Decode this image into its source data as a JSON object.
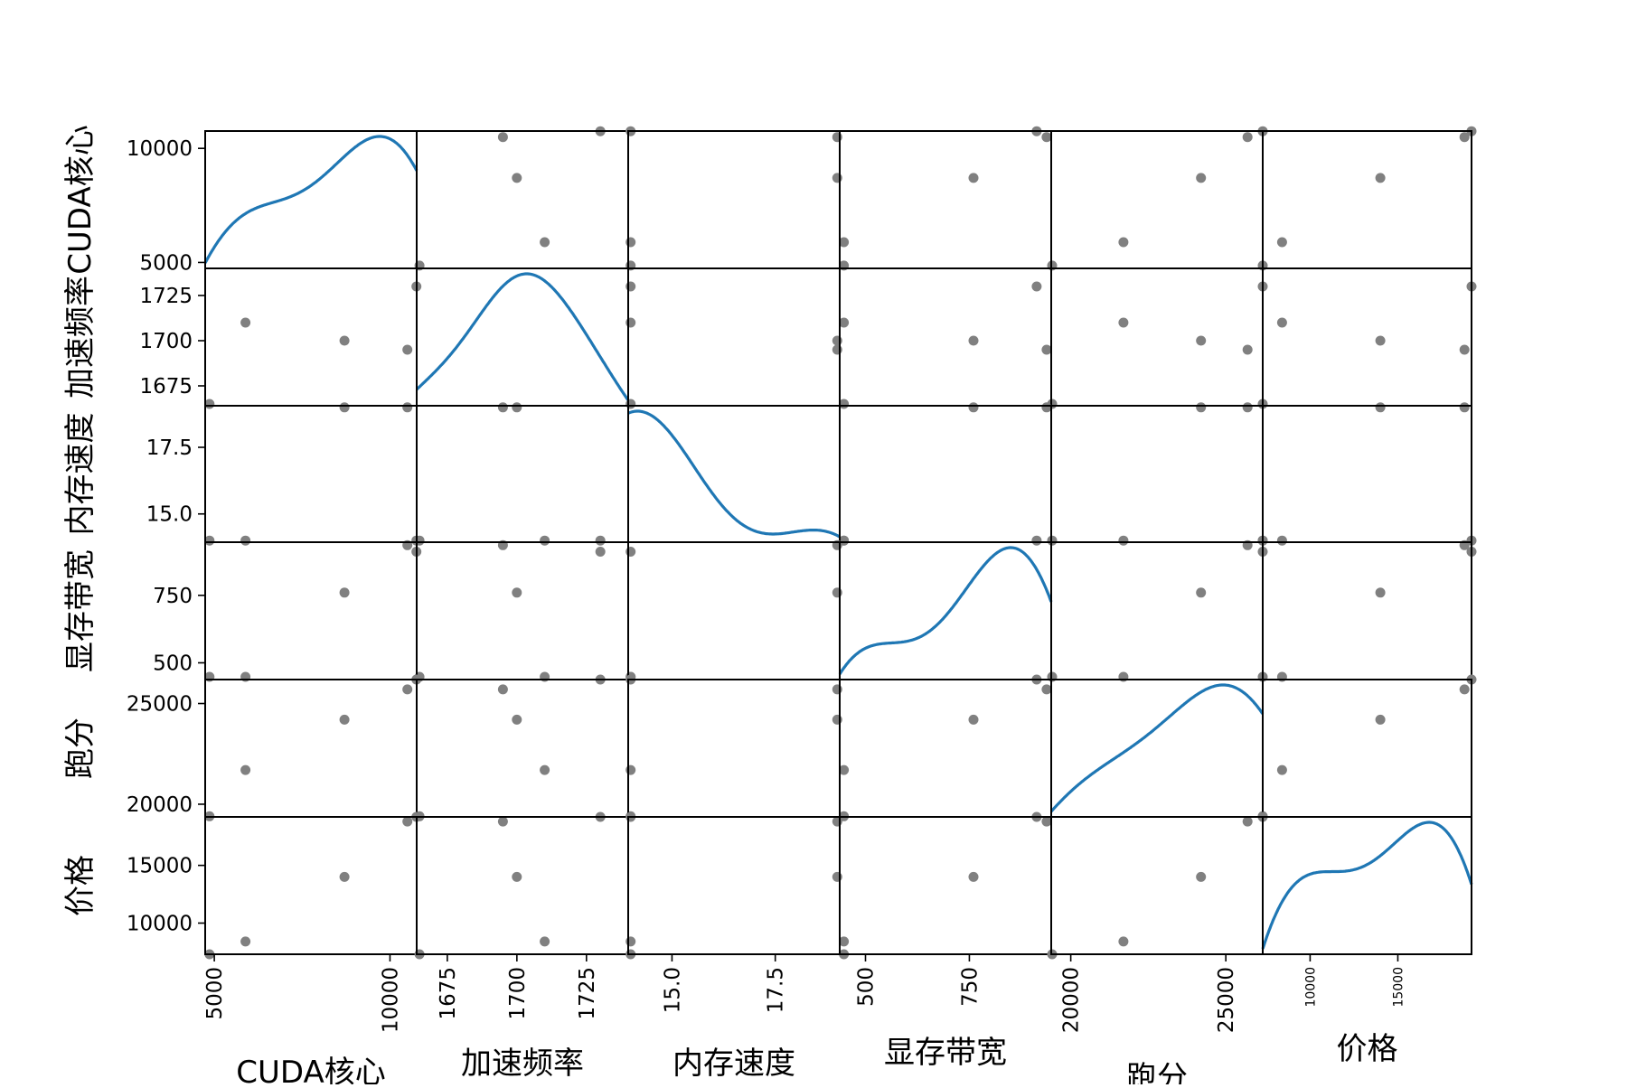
{
  "chart_data": {
    "type": "scatter",
    "subtype": "scatter-matrix",
    "diagonal": "kde",
    "point_color": "#808080",
    "kde_color": "#1f77b4",
    "variables": [
      {
        "name": "CUDA核心",
        "range": [
          4740,
          10760
        ],
        "ticks": [
          5000,
          10000
        ],
        "tick_labels": [
          "5000",
          "10000"
        ],
        "values": [
          4864,
          5888,
          8704,
          10496,
          10752
        ]
      },
      {
        "name": "加速频率",
        "range": [
          1664,
          1740
        ],
        "ticks": [
          1675,
          1700,
          1725
        ],
        "tick_labels": [
          "1675",
          "1700",
          "1725"
        ],
        "values": [
          1665,
          1710,
          1700,
          1695,
          1730
        ]
      },
      {
        "name": "内存速度",
        "range": [
          13.94,
          19.06
        ],
        "ticks": [
          15.0,
          17.5
        ],
        "tick_labels": [
          "15.0",
          "17.5"
        ],
        "values": [
          14,
          14,
          19,
          19,
          14
        ]
      },
      {
        "name": "显存带宽",
        "range": [
          438,
          947
        ],
        "ticks": [
          500,
          750
        ],
        "tick_labels": [
          "500",
          "750"
        ],
        "values": [
          448,
          448,
          760,
          936,
          912
        ]
      },
      {
        "name": "跑分",
        "range": [
          19370,
          26190
        ],
        "ticks": [
          20000,
          25000
        ],
        "tick_labels": [
          "20000",
          "25000"
        ],
        "values": [
          19400,
          21700,
          24200,
          25700,
          26200
        ]
      },
      {
        "name": "价格",
        "range": [
          7300,
          19200
        ],
        "ticks": [
          10000,
          15000
        ],
        "tick_labels": [
          "10000",
          "15000"
        ],
        "values": [
          7300,
          8400,
          14000,
          18800,
          19200
        ]
      }
    ]
  }
}
